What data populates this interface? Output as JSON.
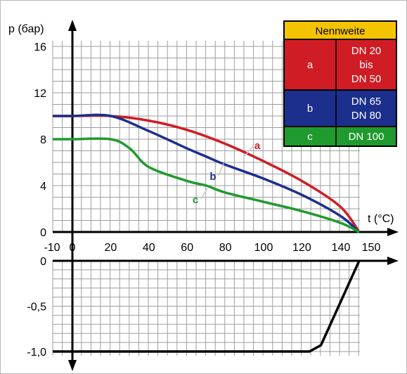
{
  "chart_data": [
    {
      "type": "line",
      "ylabel": "p (бар)",
      "xlabel": "t (°C)",
      "xlim": [
        -10,
        150
      ],
      "ylim": [
        0,
        16
      ],
      "xticks": [
        "-10",
        "0",
        "20",
        "40",
        "60",
        "80",
        "100",
        "120",
        "140",
        "150"
      ],
      "yticks": [
        "16",
        "12",
        "8",
        "4",
        "0"
      ],
      "grid": true,
      "series": [
        {
          "name": "a",
          "color": "#d01c24",
          "x": [
            -10,
            0,
            20,
            40,
            60,
            80,
            100,
            120,
            140,
            150
          ],
          "y": [
            10,
            10,
            10,
            9.6,
            8.8,
            7.6,
            6.1,
            4.4,
            2.2,
            0
          ]
        },
        {
          "name": "b",
          "color": "#1c2f8c",
          "x": [
            -10,
            0,
            20,
            40,
            60,
            70,
            80,
            100,
            120,
            140,
            150
          ],
          "y": [
            10,
            10,
            10,
            8.7,
            7.2,
            6.5,
            5.8,
            4.6,
            3.2,
            1.4,
            0
          ]
        },
        {
          "name": "c",
          "color": "#1f9a2e",
          "x": [
            -10,
            0,
            20,
            30,
            40,
            60,
            70,
            80,
            100,
            120,
            140,
            150
          ],
          "y": [
            8,
            8,
            8,
            7.2,
            5.6,
            4.4,
            4.0,
            3.4,
            2.6,
            1.8,
            0.8,
            0
          ]
        }
      ],
      "legend": {
        "placement": "top-right",
        "header": "Nennweite",
        "header_color": "#f5c400",
        "rows": [
          {
            "key": "a",
            "value_lines": [
              "DN 20",
              "bis",
              "DN 50"
            ],
            "color": "#d01c24"
          },
          {
            "key": "b",
            "value_lines": [
              "DN 65",
              "DN 80"
            ],
            "color": "#1c2f8c"
          },
          {
            "key": "c",
            "value_lines": [
              "DN 100"
            ],
            "color": "#1f9a2e"
          }
        ]
      },
      "curve_labels": [
        {
          "text": "a",
          "color": "#d01c24"
        },
        {
          "text": "b",
          "color": "#1c2f8c"
        },
        {
          "text": "c",
          "color": "#1f9a2e"
        }
      ]
    },
    {
      "type": "line",
      "xlim": [
        -10,
        150
      ],
      "ylim": [
        -1.0,
        0
      ],
      "yticks": [
        "0",
        "-0,5",
        "-1,0"
      ],
      "grid": true,
      "series": [
        {
          "color": "#000000",
          "x": [
            -10,
            0,
            20,
            40,
            60,
            80,
            100,
            120,
            124,
            130,
            150
          ],
          "y": [
            -1.0,
            -1.0,
            -1.0,
            -1.0,
            -1.0,
            -1.0,
            -1.0,
            -1.0,
            -1.0,
            -0.93,
            0
          ]
        }
      ]
    }
  ]
}
